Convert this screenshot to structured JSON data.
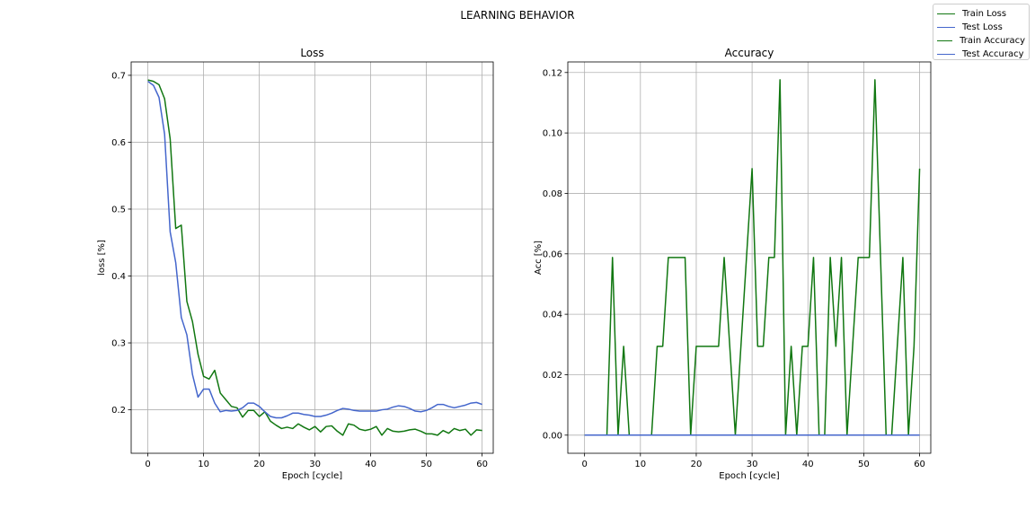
{
  "figure": {
    "suptitle": "LEARNING BEHAVIOR",
    "legend": [
      {
        "label": "Train Loss",
        "color": "#117711"
      },
      {
        "label": "Test Loss",
        "color": "#4466cc"
      },
      {
        "label": "Train Accuracy",
        "color": "#117711"
      },
      {
        "label": "Test Accuracy",
        "color": "#4466cc"
      }
    ]
  },
  "chart_data": [
    {
      "type": "line",
      "title": "Loss",
      "xlabel": "Epoch [cycle]",
      "ylabel": "loss [%]",
      "xlim": [
        -3,
        62
      ],
      "ylim": [
        0.135,
        0.72
      ],
      "xticks": [
        0,
        10,
        20,
        30,
        40,
        50,
        60
      ],
      "yticks": [
        0.2,
        0.3,
        0.4,
        0.5,
        0.6,
        0.7
      ],
      "ytick_labels": [
        "0.2",
        "0.3",
        "0.4",
        "0.5",
        "0.6",
        "0.7"
      ],
      "grid": true,
      "x": [
        0,
        1,
        2,
        3,
        4,
        5,
        6,
        7,
        8,
        9,
        10,
        11,
        12,
        13,
        14,
        15,
        16,
        17,
        18,
        19,
        20,
        21,
        22,
        23,
        24,
        25,
        26,
        27,
        28,
        29,
        30,
        31,
        32,
        33,
        34,
        35,
        36,
        37,
        38,
        39,
        40,
        41,
        42,
        43,
        44,
        45,
        46,
        47,
        48,
        49,
        50,
        51,
        52,
        53,
        54,
        55,
        56,
        57,
        58,
        59,
        60
      ],
      "series": [
        {
          "name": "Train Loss",
          "color": "#117711",
          "values": [
            0.693,
            0.691,
            0.686,
            0.665,
            0.605,
            0.471,
            0.476,
            0.362,
            0.332,
            0.283,
            0.25,
            0.246,
            0.259,
            0.225,
            0.215,
            0.205,
            0.203,
            0.189,
            0.199,
            0.199,
            0.19,
            0.197,
            0.183,
            0.177,
            0.172,
            0.174,
            0.172,
            0.179,
            0.174,
            0.17,
            0.175,
            0.167,
            0.175,
            0.176,
            0.168,
            0.162,
            0.179,
            0.177,
            0.171,
            0.169,
            0.171,
            0.175,
            0.162,
            0.172,
            0.168,
            0.167,
            0.168,
            0.17,
            0.171,
            0.168,
            0.164,
            0.164,
            0.162,
            0.169,
            0.165,
            0.172,
            0.169,
            0.171,
            0.162,
            0.17,
            0.169
          ]
        },
        {
          "name": "Test Loss",
          "color": "#4466cc",
          "values": [
            0.691,
            0.685,
            0.667,
            0.612,
            0.466,
            0.42,
            0.338,
            0.312,
            0.253,
            0.219,
            0.231,
            0.231,
            0.21,
            0.197,
            0.199,
            0.198,
            0.199,
            0.203,
            0.21,
            0.21,
            0.205,
            0.197,
            0.19,
            0.188,
            0.188,
            0.191,
            0.195,
            0.195,
            0.193,
            0.192,
            0.19,
            0.19,
            0.192,
            0.195,
            0.199,
            0.202,
            0.201,
            0.199,
            0.198,
            0.198,
            0.198,
            0.198,
            0.2,
            0.201,
            0.204,
            0.206,
            0.205,
            0.202,
            0.198,
            0.197,
            0.199,
            0.203,
            0.208,
            0.208,
            0.205,
            0.203,
            0.205,
            0.207,
            0.21,
            0.211,
            0.208
          ]
        }
      ]
    },
    {
      "type": "line",
      "title": "Accuracy",
      "xlabel": "Epoch [cycle]",
      "ylabel": "Acc [%]",
      "xlim": [
        -3,
        62
      ],
      "ylim": [
        -0.006,
        0.1235
      ],
      "xticks": [
        0,
        10,
        20,
        30,
        40,
        50,
        60
      ],
      "yticks": [
        0.0,
        0.02,
        0.04,
        0.06,
        0.08,
        0.1,
        0.12
      ],
      "ytick_labels": [
        "0.00",
        "0.02",
        "0.04",
        "0.06",
        "0.08",
        "0.10",
        "0.12"
      ],
      "grid": true,
      "x": [
        0,
        1,
        2,
        3,
        4,
        5,
        6,
        7,
        8,
        9,
        10,
        11,
        12,
        13,
        14,
        15,
        16,
        17,
        18,
        19,
        20,
        21,
        22,
        23,
        24,
        25,
        26,
        27,
        28,
        29,
        30,
        31,
        32,
        33,
        34,
        35,
        36,
        37,
        38,
        39,
        40,
        41,
        42,
        43,
        44,
        45,
        46,
        47,
        48,
        49,
        50,
        51,
        52,
        53,
        54,
        55,
        56,
        57,
        58,
        59,
        60
      ],
      "series": [
        {
          "name": "Train Accuracy",
          "color": "#117711",
          "values": [
            0,
            0,
            0,
            0,
            0,
            0.0588,
            0,
            0.0294,
            0,
            0,
            0,
            0,
            0,
            0.0294,
            0.0294,
            0.0588,
            0.0588,
            0.0588,
            0.0588,
            0,
            0.0294,
            0.0294,
            0.0294,
            0.0294,
            0.0294,
            0.0588,
            0.0294,
            0,
            0.0294,
            0.0588,
            0.0882,
            0.0294,
            0.0294,
            0.0588,
            0.0588,
            0.1176,
            0,
            0.0294,
            0,
            0.0294,
            0.0294,
            0.0588,
            0,
            0,
            0.0588,
            0.0294,
            0.0588,
            0,
            0.0294,
            0.0588,
            0.0588,
            0.0588,
            0.1176,
            0.0588,
            0,
            0,
            0.0294,
            0.0588,
            0,
            0.0294,
            0.0882
          ]
        },
        {
          "name": "Test Accuracy",
          "color": "#4466cc",
          "values": [
            0,
            0,
            0,
            0,
            0,
            0,
            0,
            0,
            0,
            0,
            0,
            0,
            0,
            0,
            0,
            0,
            0,
            0,
            0,
            0,
            0,
            0,
            0,
            0,
            0,
            0,
            0,
            0,
            0,
            0,
            0,
            0,
            0,
            0,
            0,
            0,
            0,
            0,
            0,
            0,
            0,
            0,
            0,
            0,
            0,
            0,
            0,
            0,
            0,
            0,
            0,
            0,
            0,
            0,
            0,
            0,
            0,
            0,
            0,
            0,
            0
          ]
        }
      ]
    }
  ]
}
